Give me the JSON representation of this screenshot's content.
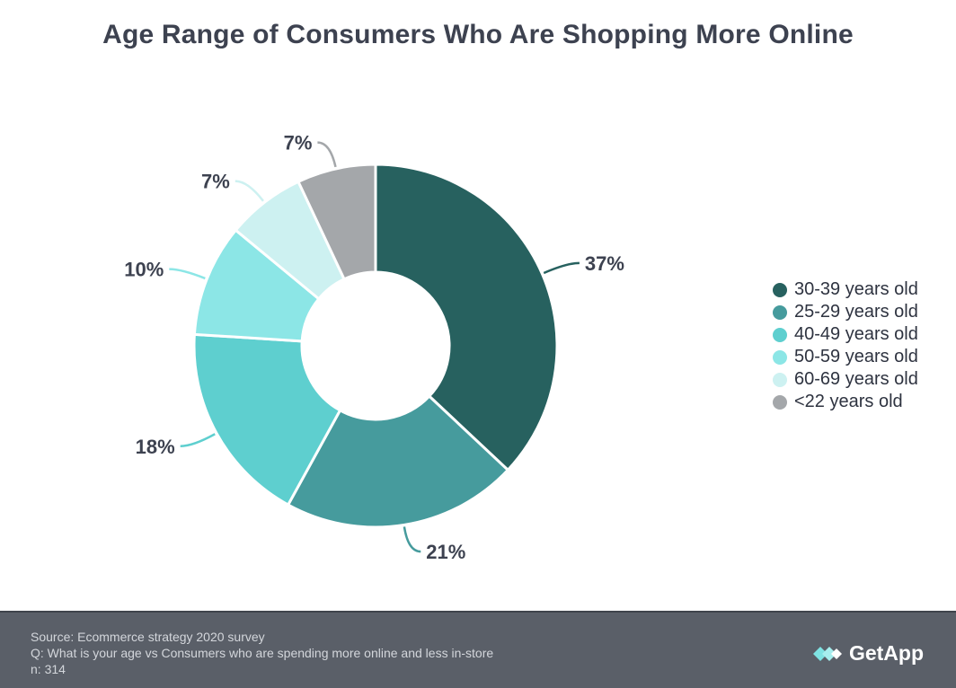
{
  "title": "Age Range of Consumers Who Are Shopping More Online",
  "chart_data": {
    "type": "pie",
    "variant": "donut",
    "title": "Age Range of Consumers Who Are Shopping More Online",
    "unit": "%",
    "slices": [
      {
        "label": "30-39 years old",
        "value": 37,
        "display": "37%",
        "color": "#27615f"
      },
      {
        "label": "25-29 years old",
        "value": 21,
        "display": "21%",
        "color": "#469b9d"
      },
      {
        "label": "40-49 years old",
        "value": 18,
        "display": "18%",
        "color": "#5ecfcf"
      },
      {
        "label": "50-59 years old",
        "value": 10,
        "display": "10%",
        "color": "#8ce6e6"
      },
      {
        "label": "60-69 years old",
        "value": 7,
        "display": "7%",
        "color": "#cdf1f1"
      },
      {
        "label": "<22 years old",
        "value": 7,
        "display": "7%",
        "color": "#a4a7aa"
      }
    ],
    "legend_position": "right"
  },
  "footer": {
    "source": "Source: Ecommerce strategy 2020 survey",
    "question": "Q: What is your age vs Consumers who are spending more online and less in-store",
    "sample": "n: 314",
    "brand": "GetApp"
  }
}
